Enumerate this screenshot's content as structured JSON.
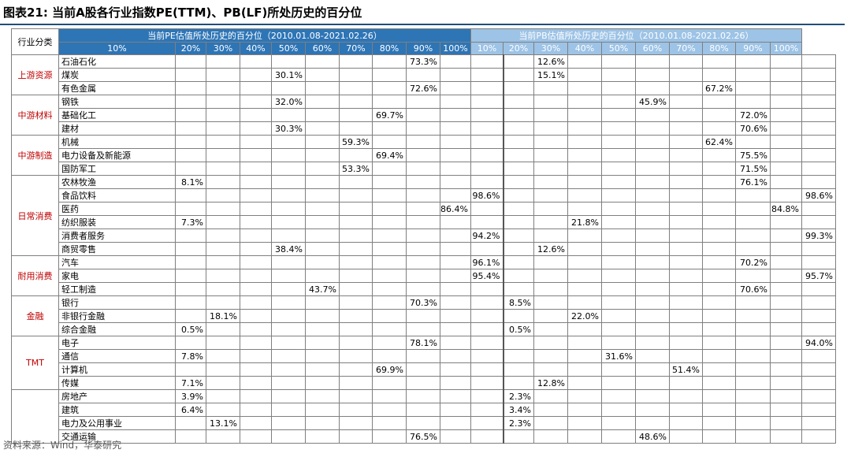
{
  "title": "图表21:  当前A股各行业指数PE(TTM)、PB(LF)所处历史的百分位",
  "source": "资料来源：Wind，华泰研究",
  "header": {
    "category": "行业分类",
    "pe_title": "当前PE估值所处历史的百分位（2010.01.08-2021.02.26）",
    "pb_title": "当前PB估值所处历史的百分位（2010.01.08-2021.02.26）",
    "buckets": [
      "10%",
      "20%",
      "30%",
      "40%",
      "50%",
      "60%",
      "70%",
      "80%",
      "90%",
      "100%"
    ]
  },
  "groups": [
    {
      "name": "上游资源",
      "rows": [
        {
          "industry": "石油石化",
          "pe": "73.3%",
          "pe_col": 7,
          "pb": "12.6%",
          "pb_col": 1
        },
        {
          "industry": "煤炭",
          "pe": "30.1%",
          "pe_col": 3,
          "pb": "15.1%",
          "pb_col": 1
        },
        {
          "industry": "有色金属",
          "pe": "72.6%",
          "pe_col": 7,
          "pb": "67.2%",
          "pb_col": 6
        }
      ]
    },
    {
      "name": "中游材料",
      "rows": [
        {
          "industry": "钢铁",
          "pe": "32.0%",
          "pe_col": 3,
          "pb": "45.9%",
          "pb_col": 4
        },
        {
          "industry": "基础化工",
          "pe": "69.7%",
          "pe_col": 6,
          "pb": "72.0%",
          "pb_col": 7
        },
        {
          "industry": "建材",
          "pe": "30.3%",
          "pe_col": 3,
          "pb": "70.6%",
          "pb_col": 7
        }
      ]
    },
    {
      "name": "中游制造",
      "rows": [
        {
          "industry": "机械",
          "pe": "59.3%",
          "pe_col": 5,
          "pb": "62.4%",
          "pb_col": 6
        },
        {
          "industry": "电力设备及新能源",
          "pe": "69.4%",
          "pe_col": 6,
          "pb": "75.5%",
          "pb_col": 7
        },
        {
          "industry": "国防军工",
          "pe": "53.3%",
          "pe_col": 5,
          "pb": "71.5%",
          "pb_col": 7
        }
      ]
    },
    {
      "name": "日常消费",
      "rows": [
        {
          "industry": "农林牧渔",
          "pe": "8.1%",
          "pe_col": 0,
          "pb": "76.1%",
          "pb_col": 7
        },
        {
          "industry": "食品饮料",
          "pe": "98.6%",
          "pe_col": 9,
          "pb": "98.6%",
          "pb_col": 9
        },
        {
          "industry": "医药",
          "pe": "86.4%",
          "pe_col": 8,
          "pb": "84.8%",
          "pb_col": 8
        },
        {
          "industry": "纺织服装",
          "pe": "7.3%",
          "pe_col": 0,
          "pb": "21.8%",
          "pb_col": 2
        },
        {
          "industry": "消费者服务",
          "pe": "94.2%",
          "pe_col": 9,
          "pb": "99.3%",
          "pb_col": 9
        },
        {
          "industry": "商贸零售",
          "pe": "38.4%",
          "pe_col": 3,
          "pb": "12.6%",
          "pb_col": 1
        }
      ]
    },
    {
      "name": "耐用消费",
      "rows": [
        {
          "industry": "汽车",
          "pe": "96.1%",
          "pe_col": 9,
          "pb": "70.2%",
          "pb_col": 7
        },
        {
          "industry": "家电",
          "pe": "95.4%",
          "pe_col": 9,
          "pb": "95.7%",
          "pb_col": 9
        },
        {
          "industry": "轻工制造",
          "pe": "43.7%",
          "pe_col": 4,
          "pb": "70.6%",
          "pb_col": 7
        }
      ]
    },
    {
      "name": "金融",
      "rows": [
        {
          "industry": "银行",
          "pe": "70.3%",
          "pe_col": 7,
          "pb": "8.5%",
          "pb_col": 0
        },
        {
          "industry": "非银行金融",
          "pe": "18.1%",
          "pe_col": 1,
          "pb": "22.0%",
          "pb_col": 2
        },
        {
          "industry": "综合金融",
          "pe": "0.5%",
          "pe_col": 0,
          "pb": "0.5%",
          "pb_col": 0
        }
      ]
    },
    {
      "name": "TMT",
      "rows": [
        {
          "industry": "电子",
          "pe": "78.1%",
          "pe_col": 7,
          "pb": "94.0%",
          "pb_col": 9
        },
        {
          "industry": "通信",
          "pe": "7.8%",
          "pe_col": 0,
          "pb": "31.6%",
          "pb_col": 3
        },
        {
          "industry": "计算机",
          "pe": "69.9%",
          "pe_col": 6,
          "pb": "51.4%",
          "pb_col": 5
        },
        {
          "industry": "传媒",
          "pe": "7.1%",
          "pe_col": 0,
          "pb": "12.8%",
          "pb_col": 1
        }
      ]
    },
    {
      "name": "",
      "rows": [
        {
          "industry": "房地产",
          "pe": "3.9%",
          "pe_col": 0,
          "pb": "2.3%",
          "pb_col": 0
        },
        {
          "industry": "建筑",
          "pe": "6.4%",
          "pe_col": 0,
          "pb": "3.4%",
          "pb_col": 0
        },
        {
          "industry": "电力及公用事业",
          "pe": "13.1%",
          "pe_col": 1,
          "pb": "2.3%",
          "pb_col": 0
        },
        {
          "industry": "交通运输",
          "pe": "76.5%",
          "pe_col": 7,
          "pb": "48.6%",
          "pb_col": 4
        }
      ]
    }
  ]
}
